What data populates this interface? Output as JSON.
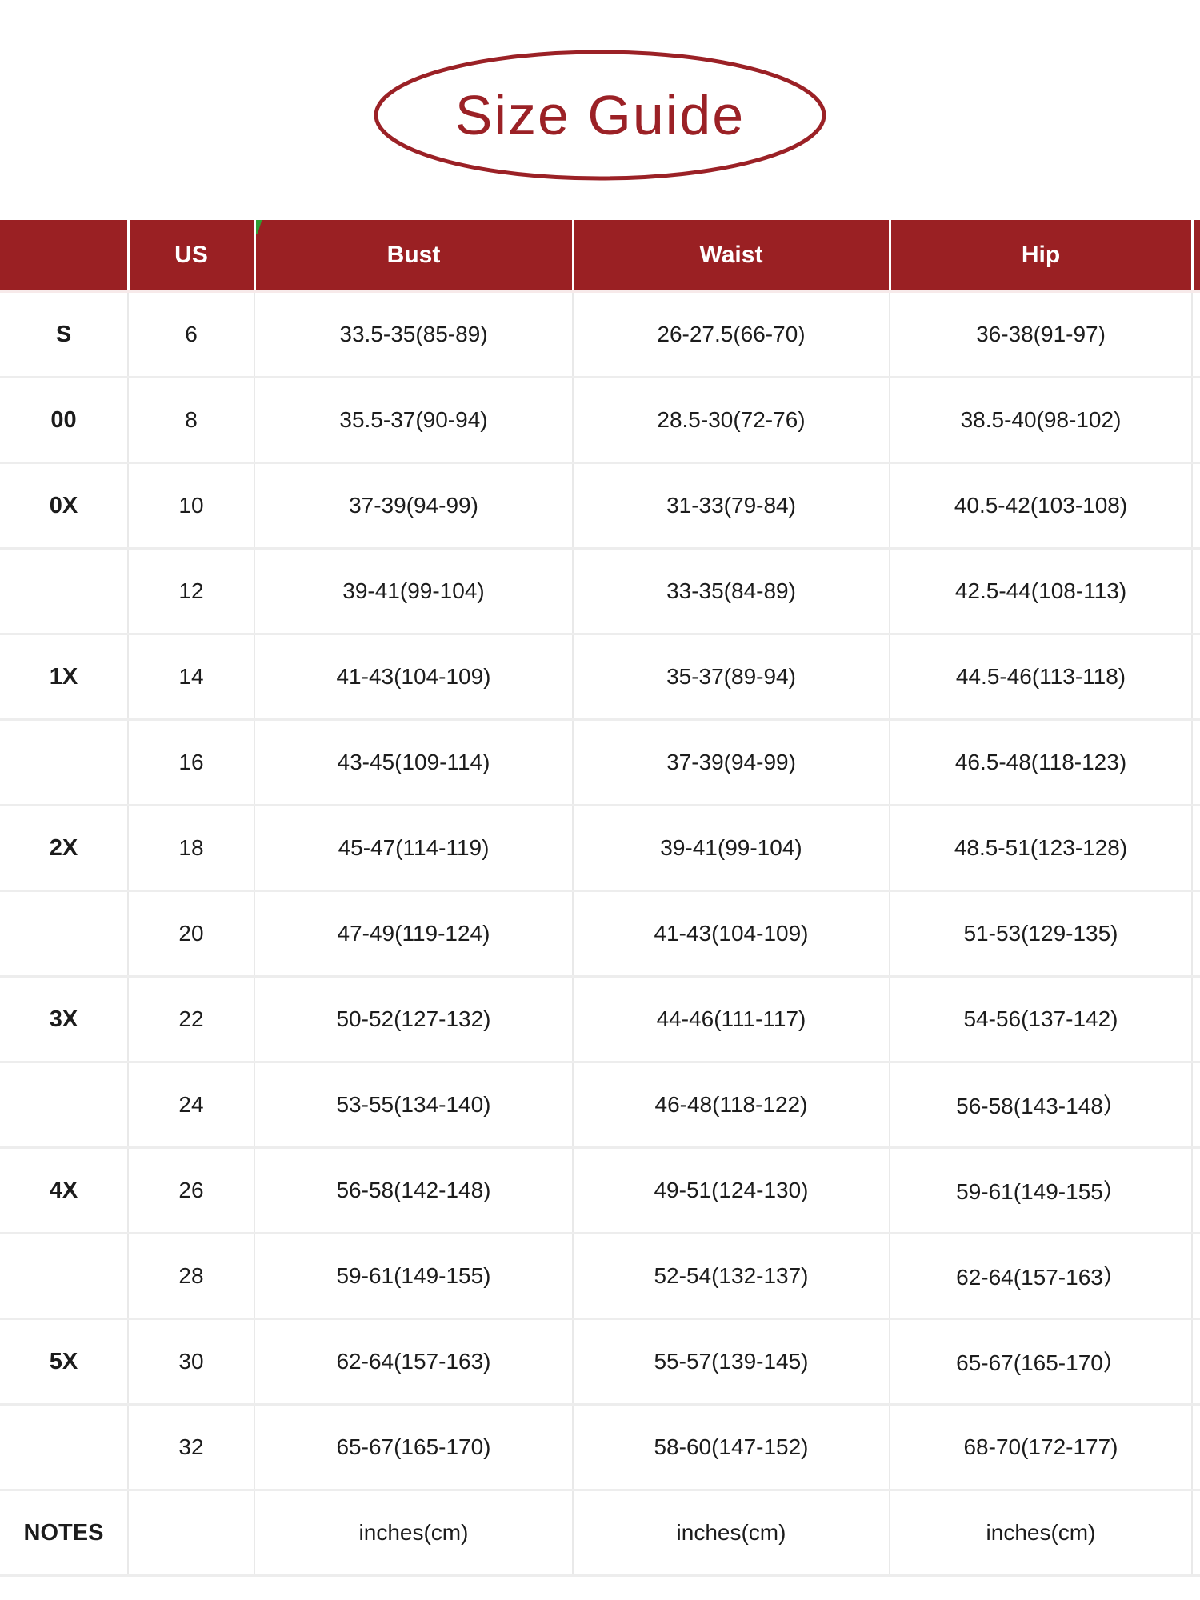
{
  "page": {
    "title": "Size Guide"
  },
  "colors": {
    "accent_red": "#9a2023",
    "title_red": "#9b2126",
    "header_text": "#ffffff",
    "body_text": "#1c1c1c",
    "grid_line": "#e9e9e9",
    "flag_green": "#2f9e33"
  },
  "chart_data": {
    "type": "table",
    "title": "Size Guide",
    "columns": [
      "",
      "US",
      "Bust",
      "Waist",
      "Hip"
    ],
    "rows": [
      [
        "S",
        "6",
        "33.5-35(85-89)",
        "26-27.5(66-70)",
        "36-38(91-97)"
      ],
      [
        "00",
        "8",
        "35.5-37(90-94)",
        "28.5-30(72-76)",
        "38.5-40(98-102)"
      ],
      [
        "0X",
        "10",
        "37-39(94-99)",
        "31-33(79-84)",
        "40.5-42(103-108)"
      ],
      [
        "",
        "12",
        "39-41(99-104)",
        "33-35(84-89)",
        "42.5-44(108-113)"
      ],
      [
        "1X",
        "14",
        "41-43(104-109)",
        "35-37(89-94)",
        "44.5-46(113-118)"
      ],
      [
        "",
        "16",
        "43-45(109-114)",
        "37-39(94-99)",
        "46.5-48(118-123)"
      ],
      [
        "2X",
        "18",
        "45-47(114-119)",
        "39-41(99-104)",
        "48.5-51(123-128)"
      ],
      [
        "",
        "20",
        "47-49(119-124)",
        "41-43(104-109)",
        "51-53(129-135)"
      ],
      [
        "3X",
        "22",
        "50-52(127-132)",
        "44-46(111-117)",
        "54-56(137-142)"
      ],
      [
        "",
        "24",
        "53-55(134-140)",
        "46-48(118-122)",
        "56-58(143-148）"
      ],
      [
        "4X",
        "26",
        "56-58(142-148)",
        "49-51(124-130)",
        "59-61(149-155）"
      ],
      [
        "",
        "28",
        "59-61(149-155)",
        "52-54(132-137)",
        "62-64(157-163）"
      ],
      [
        "5X",
        "30",
        "62-64(157-163)",
        "55-57(139-145)",
        "65-67(165-170）"
      ],
      [
        "",
        "32",
        "65-67(165-170)",
        "58-60(147-152)",
        "68-70(172-177)"
      ],
      [
        "NOTES",
        "",
        "inches(cm)",
        "inches(cm)",
        "inches(cm)"
      ]
    ],
    "units_note": "inches(cm)",
    "layout_hints": {
      "header_style": "dark-red band, white bold text",
      "grid": "light gray lines"
    }
  }
}
